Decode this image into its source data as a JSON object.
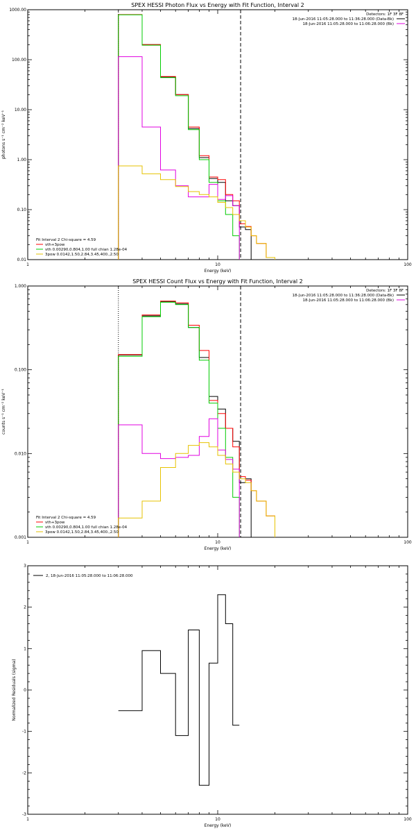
{
  "colors": {
    "black": "#000000",
    "red": "#ff0000",
    "green": "#00cc00",
    "magenta": "#e100e1",
    "yellow": "#e6c200"
  },
  "chart_data": [
    {
      "type": "line",
      "step": true,
      "title": "SPEX HESSI Photon Flux vs Energy with Fit Function, Interval 2",
      "xlabel": "Energy (keV)",
      "ylabel": "photons s⁻¹ cm⁻² keV⁻¹",
      "xscale": "log",
      "yscale": "log",
      "xlim": [
        1,
        100
      ],
      "ylim": [
        0.01,
        1000
      ],
      "xticks": [
        1,
        10,
        100
      ],
      "yticks": [
        0.01,
        0.1,
        1,
        10,
        100,
        1000
      ],
      "ytick_labels": [
        "0.01",
        "0.10",
        "1.00",
        "10.00",
        "100.00",
        "1000.00"
      ],
      "detectors": "Detectors: 1F 3F 8F",
      "top_legend": [
        {
          "text": "18-Jun-2016 11:05:28.000 to 11:36:28.000 (Data-Bk)",
          "color": "#000000"
        },
        {
          "text": "18-Jun-2016 11:05:28.000 to 11:06:28.000 (Bk)",
          "color": "#e100e1"
        }
      ],
      "fit_legend": [
        {
          "text": "Fit Interval 2   Chi-square = 4.59",
          "color": null
        },
        {
          "text": "vth+3pow",
          "color": "#ff0000"
        },
        {
          "text": "vth 0.00290,0.804,1.00  full chian 1.28e-04",
          "color": "#00cc00"
        },
        {
          "text": "3pow 0.0142,1.50,2.84,3.45,400.,2.50",
          "color": "#e6c200"
        }
      ],
      "vlines": [
        {
          "x": 3,
          "style": "dotted"
        },
        {
          "x": 13.2,
          "style": "dashed"
        }
      ],
      "edges": [
        3,
        4,
        5,
        6,
        7,
        8,
        9,
        10,
        11,
        12,
        13,
        14,
        15,
        16,
        18,
        20
      ],
      "series": [
        {
          "color": "#000000",
          "values": [
            800,
            200,
            45,
            20,
            4.2,
            1.1,
            0.42,
            0.35,
            0.15,
            0.12,
            0.045,
            0.04,
            null,
            null,
            null
          ]
        },
        {
          "color": "#ff0000",
          "values": [
            800,
            200,
            46,
            20,
            4.5,
            1.2,
            0.45,
            0.4,
            0.2,
            0.15,
            0.052,
            0.046,
            0.03,
            0.021,
            0.011
          ]
        },
        {
          "color": "#00cc00",
          "values": [
            790,
            195,
            44,
            19,
            4.0,
            1.0,
            0.35,
            0.15,
            0.08,
            0.03,
            null,
            null,
            null,
            null,
            null
          ]
        },
        {
          "color": "#e100e1",
          "values": [
            115,
            4.5,
            0.62,
            0.3,
            0.18,
            0.18,
            0.32,
            0.16,
            0.19,
            0.12,
            null,
            null,
            null,
            null,
            null
          ]
        },
        {
          "color": "#e6c200",
          "values": [
            0.75,
            0.52,
            0.4,
            0.29,
            0.23,
            0.2,
            0.18,
            0.14,
            0.11,
            0.08,
            0.06,
            0.045,
            0.03,
            0.021,
            0.011
          ]
        }
      ]
    },
    {
      "type": "line",
      "step": true,
      "title": "SPEX HESSI Count Flux vs Energy with Fit Function, Interval 2",
      "xlabel": "Energy (keV)",
      "ylabel": "counts s⁻¹ cm⁻² keV⁻¹",
      "xscale": "log",
      "yscale": "log",
      "xlim": [
        1,
        100
      ],
      "ylim": [
        0.001,
        1
      ],
      "xticks": [
        1,
        10,
        100
      ],
      "yticks": [
        0.001,
        0.01,
        0.1,
        1
      ],
      "ytick_labels": [
        "0.001",
        "0.010",
        "0.100",
        "1.000"
      ],
      "detectors": "Detectors: 1F 3F 8F",
      "top_legend": [
        {
          "text": "18-Jun-2016 11:05:28.000 to 11:36:28.000 (Data-Bk)",
          "color": "#000000"
        },
        {
          "text": "18-Jun-2016 11:05:28.000 to 11:06:28.000 (Bk)",
          "color": "#e100e1"
        }
      ],
      "fit_legend": [
        {
          "text": "Fit Interval 2   Chi-square = 4.59",
          "color": null
        },
        {
          "text": "vth+3pow",
          "color": "#ff0000"
        },
        {
          "text": "vth 0.00290,0.804,1.00  full chian 1.28e-04",
          "color": "#00cc00"
        },
        {
          "text": "3pow 0.0142,1.50,2.84,3.45,400.,2.50",
          "color": "#e6c200"
        }
      ],
      "vlines": [
        {
          "x": 3,
          "style": "dotted"
        },
        {
          "x": 13.2,
          "style": "dashed"
        }
      ],
      "edges": [
        3,
        4,
        5,
        6,
        7,
        8,
        9,
        10,
        11,
        12,
        13,
        14,
        15,
        16,
        18,
        20
      ],
      "series": [
        {
          "color": "#000000",
          "values": [
            0.15,
            0.44,
            0.65,
            0.61,
            0.32,
            0.14,
            0.048,
            0.034,
            0.02,
            0.014,
            0.0045,
            0.005,
            null,
            null,
            null
          ]
        },
        {
          "color": "#ff0000",
          "values": [
            0.152,
            0.45,
            0.66,
            0.63,
            0.34,
            0.17,
            0.043,
            0.03,
            0.02,
            0.012,
            0.0053,
            0.0048,
            0.0036,
            0.0027,
            0.0018
          ]
        },
        {
          "color": "#00cc00",
          "values": [
            0.145,
            0.43,
            0.64,
            0.6,
            0.32,
            0.13,
            0.04,
            0.02,
            0.009,
            0.003,
            null,
            null,
            null,
            null,
            null
          ]
        },
        {
          "color": "#e100e1",
          "values": [
            0.022,
            0.01,
            0.0087,
            0.009,
            0.0095,
            0.016,
            0.026,
            0.011,
            0.0085,
            0.0065,
            null,
            null,
            null,
            null,
            null
          ]
        },
        {
          "color": "#e6c200",
          "values": [
            0.0017,
            0.0027,
            0.0068,
            0.01,
            0.0125,
            0.0135,
            0.012,
            0.0095,
            0.0075,
            0.006,
            0.005,
            0.0045,
            0.0036,
            0.0027,
            0.0018
          ]
        }
      ]
    },
    {
      "type": "line",
      "step": true,
      "title": "",
      "xlabel": "Energy (keV)",
      "ylabel": "Normalized Residuals (sigma)",
      "xscale": "log",
      "yscale": "linear",
      "xlim": [
        1,
        100
      ],
      "ylim": [
        -3,
        3
      ],
      "xticks": [
        1,
        10,
        100
      ],
      "yticks": [
        -3,
        -2,
        -1,
        0,
        1,
        2,
        3
      ],
      "ytick_labels": [
        "-3",
        "-2",
        "-1",
        "0",
        "1",
        "2",
        "3"
      ],
      "top_legend": [
        {
          "text": "2, 18-Jun-2016 11:05:28.000 to 11:06:28.000",
          "color": "#000000"
        }
      ],
      "vlines": [],
      "edges": [
        3,
        4,
        5,
        6,
        7,
        8,
        9,
        10,
        11,
        12,
        13
      ],
      "series": [
        {
          "color": "#000000",
          "values": [
            -0.5,
            0.95,
            0.4,
            -1.1,
            1.45,
            -2.3,
            0.65,
            2.3,
            1.6,
            -0.85
          ]
        }
      ]
    }
  ]
}
